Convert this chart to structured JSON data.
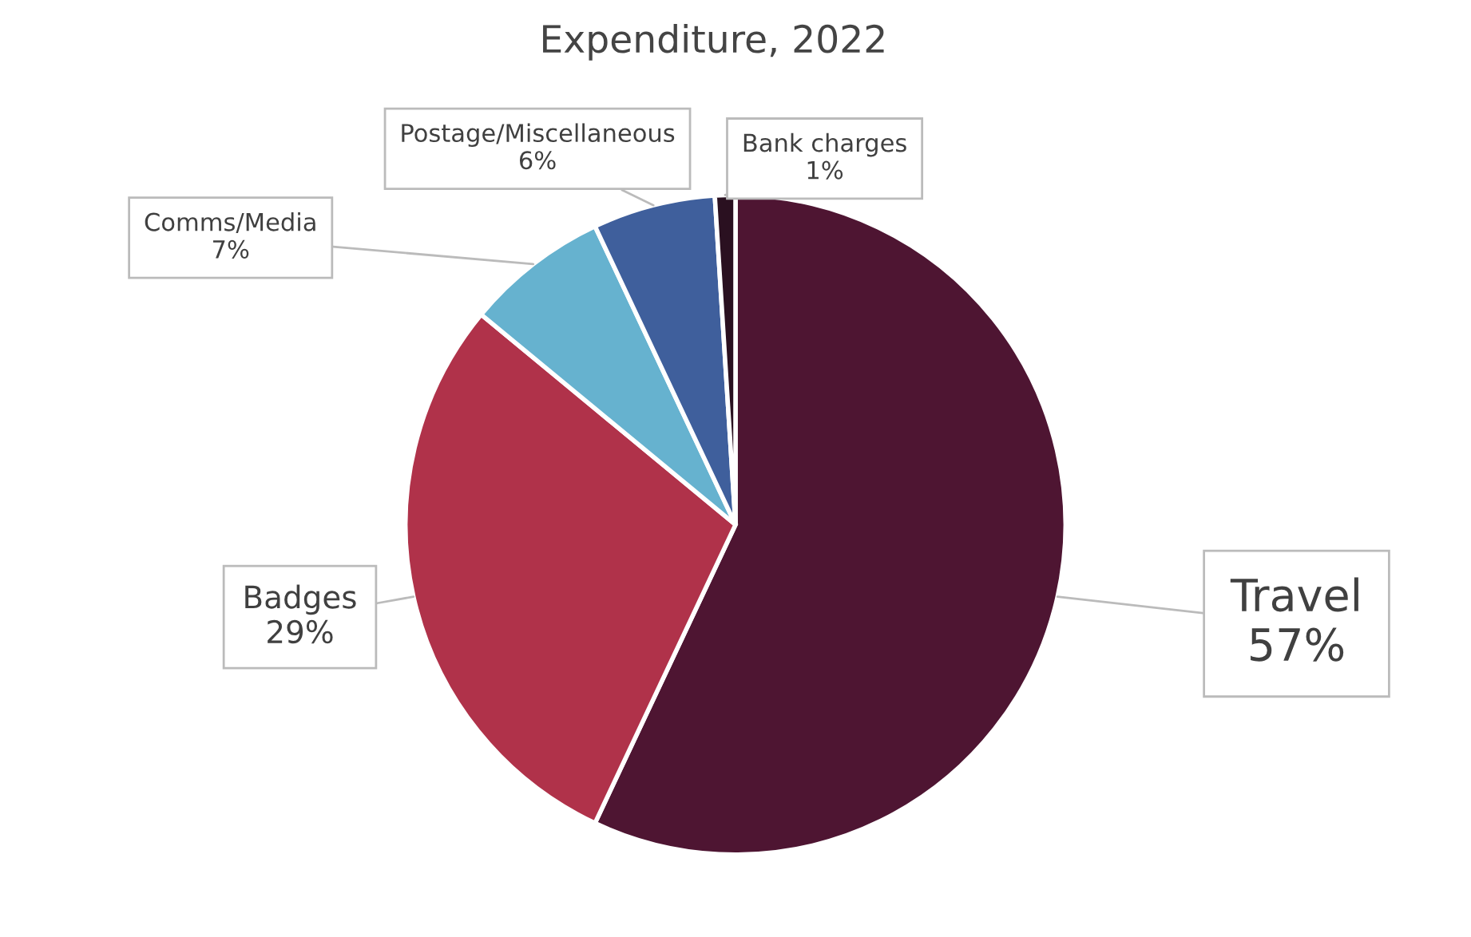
{
  "chart_data": {
    "type": "pie",
    "title": "Expenditure, 2022",
    "categories": [
      "Travel",
      "Badges",
      "Comms/Media",
      "Postage/Miscellaneous",
      "Bank charges"
    ],
    "values": [
      57,
      29,
      7,
      6,
      1
    ],
    "value_labels": [
      "57%",
      "29%",
      "7%",
      "6%",
      "1%"
    ],
    "colors": [
      "#4e1532",
      "#b0324a",
      "#66b2cf",
      "#3f5f9c",
      "#2a1020"
    ],
    "legend": false
  }
}
